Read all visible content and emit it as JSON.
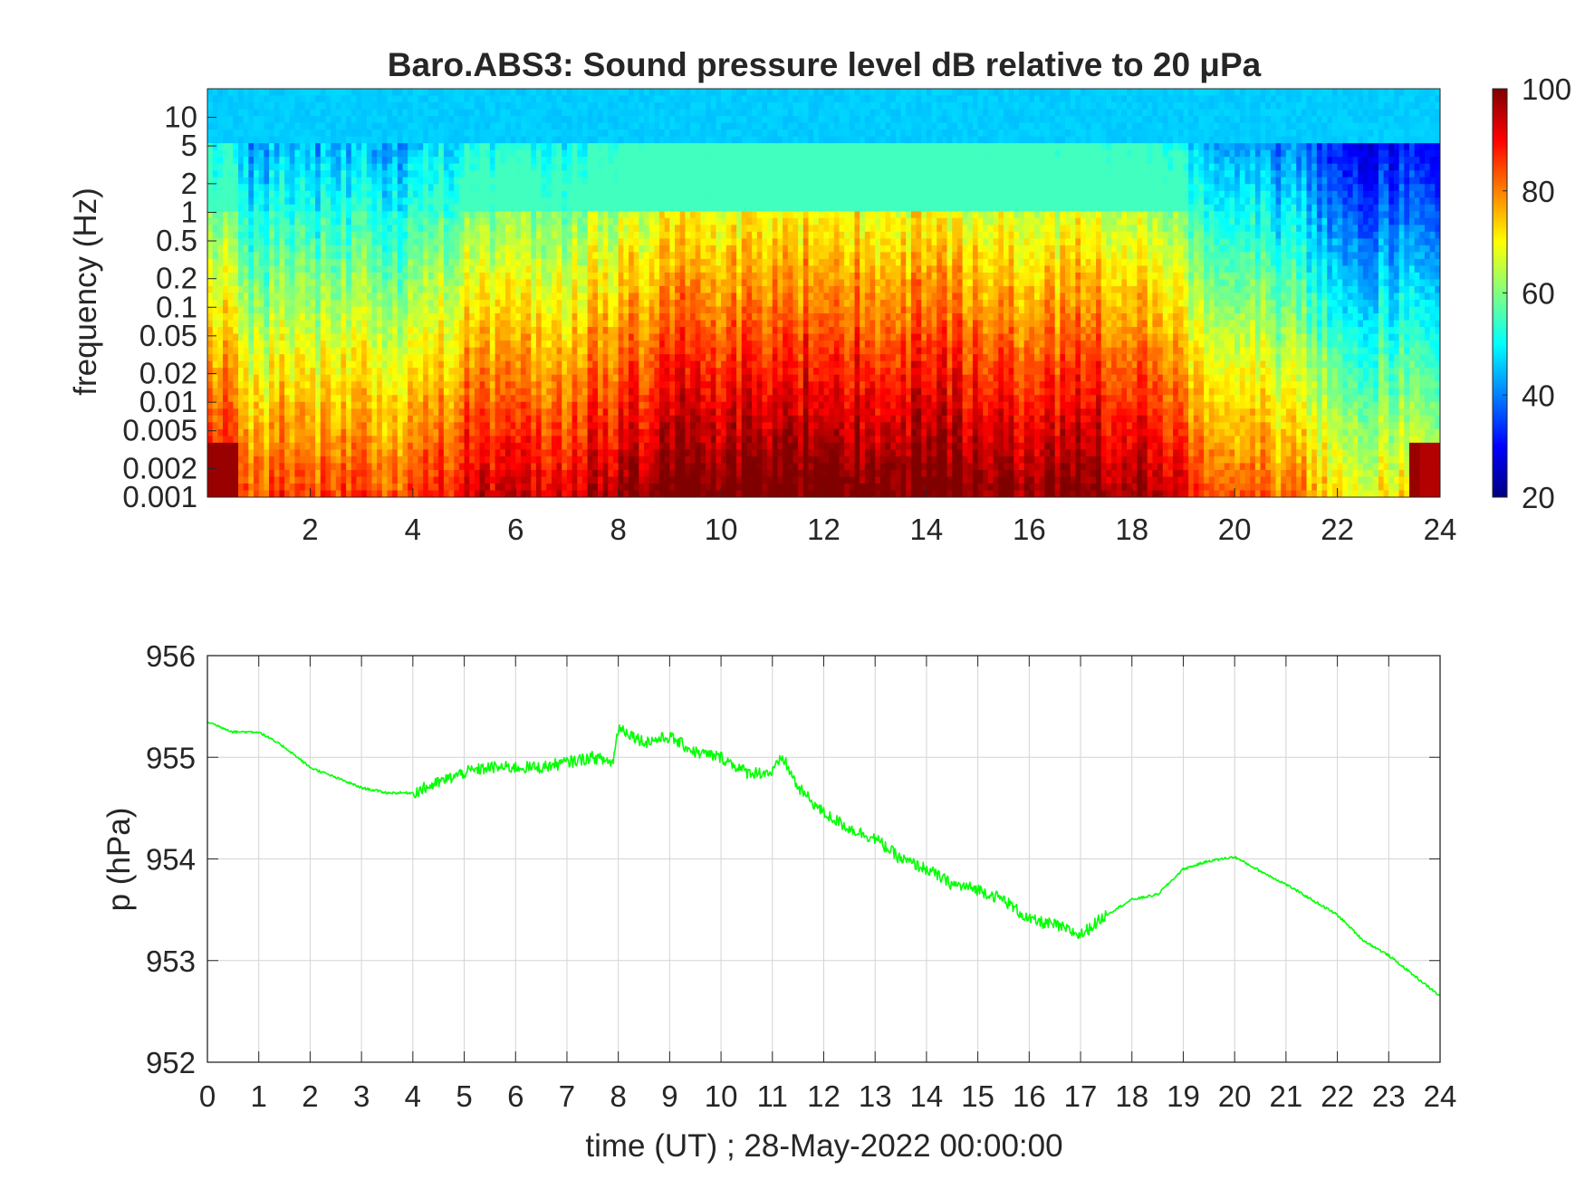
{
  "colors": {
    "pressure_line": "#00ff00",
    "axis": "#262626",
    "grid": "#d4d4d4",
    "colormap": "jet"
  },
  "chart_data": [
    {
      "type": "heatmap",
      "title": "Baro.ABS3: Sound pressure level dB relative to 20 μPa",
      "xlabel": "",
      "ylabel": "frequency (Hz)",
      "xlim": [
        0,
        24
      ],
      "x_ticks": [
        2,
        4,
        6,
        8,
        10,
        12,
        14,
        16,
        18,
        20,
        22,
        24
      ],
      "y_scale": "log",
      "ylim": [
        0.001,
        20
      ],
      "y_ticks": [
        10,
        5,
        2,
        1,
        0.5,
        0.2,
        0.1,
        0.05,
        0.02,
        0.01,
        0.005,
        0.002,
        0.001
      ],
      "colorbar": {
        "min": 20,
        "max": 100,
        "ticks": [
          100,
          80,
          60,
          40,
          20
        ],
        "colormap": "jet",
        "position": "right"
      },
      "time_profile_db_at_0p01hz": [
        [
          0.5,
          82
        ],
        [
          1,
          70
        ],
        [
          1.5,
          78
        ],
        [
          2,
          72
        ],
        [
          3,
          76
        ],
        [
          4,
          72
        ],
        [
          5,
          82
        ],
        [
          6,
          84
        ],
        [
          7,
          82
        ],
        [
          8,
          86
        ],
        [
          9,
          92
        ],
        [
          10,
          90
        ],
        [
          11,
          92
        ],
        [
          12,
          93
        ],
        [
          13,
          91
        ],
        [
          14,
          92
        ],
        [
          15,
          90
        ],
        [
          16,
          88
        ],
        [
          17,
          90
        ],
        [
          18,
          88
        ],
        [
          19,
          80
        ],
        [
          20,
          72
        ],
        [
          21,
          70
        ],
        [
          22,
          62
        ],
        [
          23,
          60
        ],
        [
          24,
          60
        ]
      ]
    },
    {
      "type": "line",
      "title": "",
      "xlabel": "time (UT) ; 28-May-2022 00:00:00",
      "ylabel": "p (hPa)",
      "xlim": [
        0,
        24
      ],
      "ylim": [
        952,
        956
      ],
      "x_ticks": [
        0,
        1,
        2,
        3,
        4,
        5,
        6,
        7,
        8,
        9,
        10,
        11,
        12,
        13,
        14,
        15,
        16,
        17,
        18,
        19,
        20,
        21,
        22,
        23,
        24
      ],
      "y_ticks": [
        952,
        953,
        954,
        955,
        956
      ],
      "grid": true,
      "series": [
        {
          "color": "#00ff00",
          "x": [
            0,
            0.5,
            1,
            1.5,
            2,
            2.5,
            3,
            3.5,
            4,
            4.5,
            5,
            5.5,
            6,
            6.5,
            7,
            7.5,
            7.9,
            8,
            8.5,
            9,
            9.5,
            10,
            10.5,
            11,
            11.2,
            11.5,
            12,
            12.5,
            13,
            13.5,
            14,
            14.5,
            15,
            15.5,
            16,
            16.5,
            17,
            17.5,
            18,
            18.5,
            19,
            19.5,
            20,
            20.5,
            21,
            21.5,
            22,
            22.5,
            23,
            23.5,
            24
          ],
          "y": [
            955.35,
            955.25,
            955.25,
            955.1,
            954.9,
            954.8,
            954.7,
            954.65,
            954.65,
            954.75,
            954.85,
            954.9,
            954.9,
            954.9,
            954.95,
            955.0,
            954.95,
            955.3,
            955.15,
            955.2,
            955.05,
            955.0,
            954.85,
            954.85,
            955.0,
            954.7,
            954.45,
            954.3,
            954.2,
            954.0,
            953.9,
            953.75,
            953.7,
            953.6,
            953.4,
            953.35,
            953.25,
            953.45,
            953.6,
            953.65,
            953.9,
            953.98,
            954.02,
            953.88,
            953.75,
            953.6,
            953.45,
            953.2,
            953.05,
            952.85,
            952.65
          ]
        }
      ]
    }
  ]
}
